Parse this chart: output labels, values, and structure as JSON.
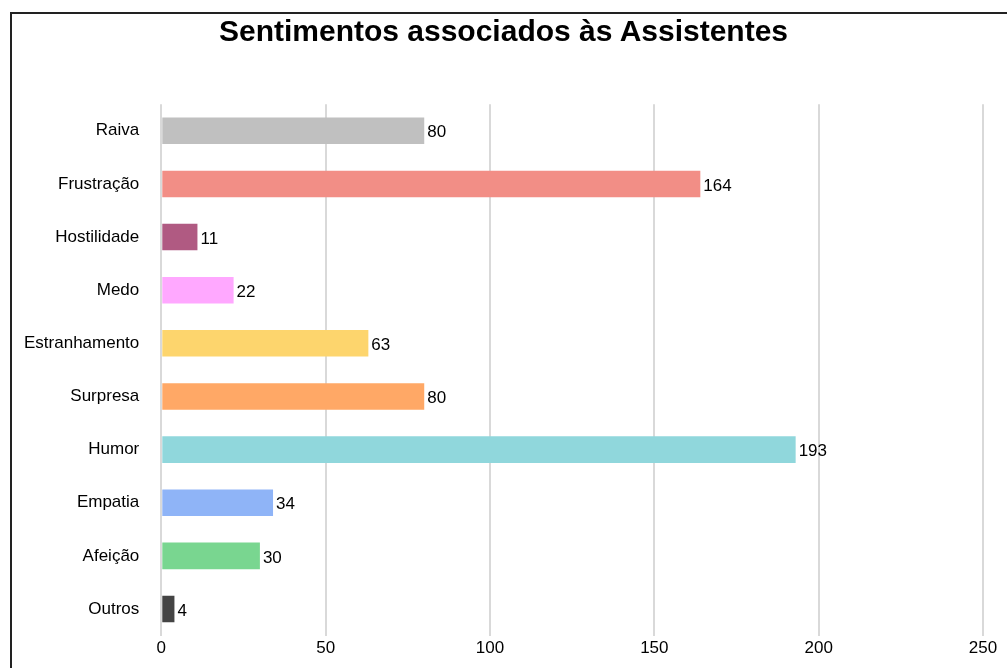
{
  "chart_data": {
    "type": "bar",
    "title": "Sentimentos associados às Assistentes",
    "orientation": "horizontal",
    "categories": [
      "Raiva",
      "Frustração",
      "Hostilidade",
      "Medo",
      "Estranhamento",
      "Surpresa",
      "Humor",
      "Empatia",
      "Afeição",
      "Outros"
    ],
    "values": [
      80,
      164,
      11,
      22,
      63,
      80,
      193,
      34,
      30,
      4
    ],
    "colors": [
      "#c0c0c0",
      "#f28e86",
      "#b05a82",
      "#ffa8ff",
      "#fdd56d",
      "#ffa866",
      "#90d7dc",
      "#8fb4f7",
      "#79d690",
      "#444444"
    ],
    "xlim": [
      0,
      250
    ],
    "xticks": [
      0,
      50,
      100,
      150,
      200,
      250
    ],
    "grid": "x",
    "legend": false,
    "data_labels": true
  }
}
